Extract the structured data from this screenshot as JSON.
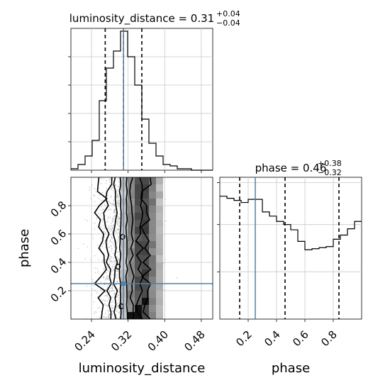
{
  "chart_data": [
    {
      "type": "histogram",
      "panel": "luminosity_distance marginal",
      "title": {
        "text": "luminosity_distance = 0.31",
        "sup": "+0.04",
        "sub": "−0.04"
      },
      "xlim": [
        0.195,
        0.505
      ],
      "ylim": [
        0,
        1.0
      ],
      "grid": true,
      "bin_edges": [
        0.195,
        0.2105,
        0.226,
        0.2415,
        0.257,
        0.2725,
        0.288,
        0.3035,
        0.319,
        0.3345,
        0.35,
        0.3655,
        0.381,
        0.3965,
        0.412,
        0.4275,
        0.443,
        0.4585,
        0.474,
        0.4895,
        0.505
      ],
      "counts": [
        0.01,
        0.04,
        0.1,
        0.21,
        0.49,
        0.72,
        0.84,
        0.98,
        0.8,
        0.6,
        0.36,
        0.19,
        0.1,
        0.04,
        0.03,
        0.01,
        0.01,
        0.0,
        0.0,
        0.0
      ],
      "quantiles": [
        0.27,
        0.31,
        0.35
      ],
      "truth": 0.31,
      "color": "#000000",
      "truth_color": "#4682b4"
    },
    {
      "type": "histogram",
      "panel": "phase marginal",
      "title": {
        "text": "phase = 0.46",
        "sup": "+0.38",
        "sub": "−0.32"
      },
      "xlim": [
        0.0,
        1.0
      ],
      "ylim": [
        0,
        1.35
      ],
      "xticks": [
        0.2,
        0.4,
        0.6,
        0.8
      ],
      "xticklabels": [
        "0.2",
        "0.4",
        "0.6",
        "0.8"
      ],
      "xlabel": "phase",
      "grid": true,
      "bin_edges": [
        0.0,
        0.05,
        0.1,
        0.15,
        0.2,
        0.25,
        0.3,
        0.35,
        0.4,
        0.45,
        0.5,
        0.55,
        0.6,
        0.65,
        0.7,
        0.75,
        0.8,
        0.85,
        0.9,
        0.95,
        1.0
      ],
      "counts": [
        1.17,
        1.15,
        1.13,
        1.11,
        1.14,
        1.14,
        1.02,
        0.98,
        0.93,
        0.9,
        0.85,
        0.74,
        0.66,
        0.67,
        0.68,
        0.69,
        0.76,
        0.8,
        0.86,
        0.93
      ],
      "quantiles": [
        0.14,
        0.46,
        0.84
      ],
      "truth": 0.25,
      "color": "#000000",
      "truth_color": "#4682b4"
    },
    {
      "type": "scatter",
      "panel": "phase vs luminosity_distance 2D",
      "xlim": [
        0.195,
        0.505
      ],
      "ylim": [
        0.0,
        1.0
      ],
      "xticks": [
        0.24,
        0.32,
        0.4,
        0.48
      ],
      "xticklabels": [
        "0.24",
        "0.32",
        "0.40",
        "0.48"
      ],
      "yticks": [
        0.2,
        0.4,
        0.6,
        0.8
      ],
      "yticklabels": [
        "0.2",
        "0.4",
        "0.6",
        "0.8"
      ],
      "xlabel": "luminosity_distance",
      "ylabel": "phase",
      "grid": true,
      "points_center_x": 0.31,
      "points_spread_x": 0.03,
      "truth": {
        "x": 0.31,
        "y": 0.25
      },
      "contour_half_widths": [
        0.007,
        0.018,
        0.034,
        0.05
      ],
      "point_color": "#9a9a9a",
      "contour_color": "#000000",
      "truth_color": "#4682b4"
    }
  ]
}
